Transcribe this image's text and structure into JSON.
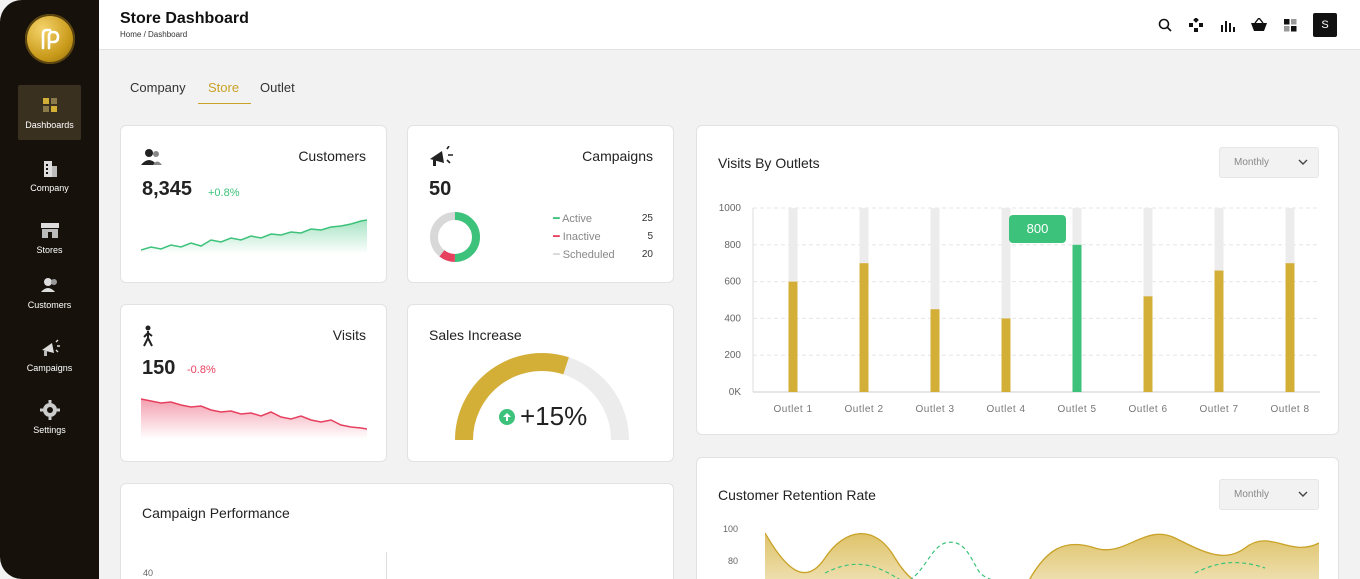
{
  "header": {
    "title": "Store Dashboard",
    "breadcrumb_home": "Home /",
    "breadcrumb_current": "Dashboard",
    "avatar_initial": "S"
  },
  "sidebar": {
    "items": [
      {
        "label": "Dashboards",
        "icon": "grid-icon"
      },
      {
        "label": "Company",
        "icon": "building-icon"
      },
      {
        "label": "Stores",
        "icon": "store-icon"
      },
      {
        "label": "Customers",
        "icon": "users-icon"
      },
      {
        "label": "Campaigns",
        "icon": "megaphone-icon"
      },
      {
        "label": "Settings",
        "icon": "gear-icon"
      }
    ]
  },
  "tabs": [
    "Company",
    "Store",
    "Outlet"
  ],
  "customers": {
    "title": "Customers",
    "value": "8,345",
    "delta": "+0.8%"
  },
  "campaigns": {
    "title": "Campaigns",
    "value": "50",
    "legend": [
      {
        "label": "Active",
        "value": "25",
        "color": "#3cc27a"
      },
      {
        "label": "Inactive",
        "value": "5",
        "color": "#e6405f"
      },
      {
        "label": "Scheduled",
        "value": "20",
        "color": "#d8d8d8"
      }
    ]
  },
  "visits": {
    "title": "Visits",
    "value": "150",
    "delta": "-0.8%"
  },
  "sales": {
    "title": "Sales Increase",
    "value": "+15%",
    "fraction": 0.6
  },
  "campaign_performance": {
    "title": "Campaign Performance",
    "y_tick": "40"
  },
  "visits_by_outlets": {
    "title": "Visits By Outlets",
    "dropdown": "Monthly",
    "tooltip": "800"
  },
  "retention": {
    "title": "Customer Retention Rate",
    "dropdown": "Monthly",
    "y_ticks": [
      "100",
      "80"
    ]
  },
  "colors": {
    "gold": "#d4af37",
    "green": "#3cc27a",
    "pink": "#e6405f",
    "track": "#ececec"
  },
  "chart_data": {
    "type": "bar",
    "categories": [
      "Outlet 1",
      "Outlet 2",
      "Outlet 3",
      "Outlet 4",
      "Outlet 5",
      "Outlet 6",
      "Outlet 7",
      "Outlet 8"
    ],
    "values": [
      600,
      700,
      450,
      400,
      800,
      520,
      660,
      700
    ],
    "max": 1000,
    "y_ticks": [
      "0K",
      "200",
      "400",
      "600",
      "800",
      "1000"
    ],
    "highlight": "Outlet 5",
    "ylim": [
      0,
      1000
    ]
  }
}
